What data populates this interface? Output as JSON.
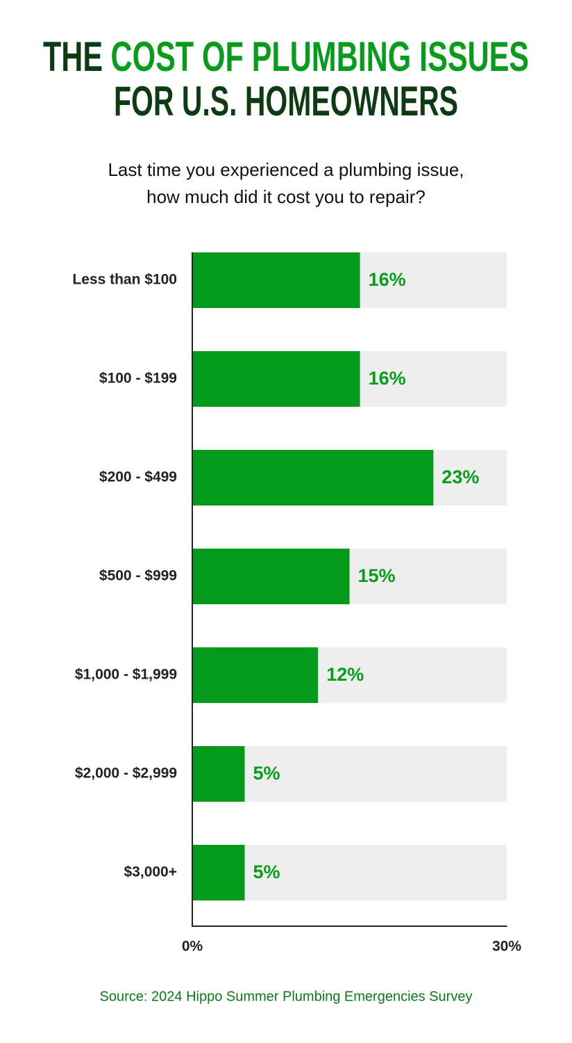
{
  "chart_data": {
    "type": "bar",
    "orientation": "horizontal",
    "title": {
      "lead": "THE",
      "highlight": "COST OF PLUMBING ISSUES",
      "rest": "FOR U.S. HOMEOWNERS"
    },
    "subtitle": [
      "Last time you experienced a plumbing issue,",
      "how much did it cost you to repair?"
    ],
    "categories": [
      "Less than $100",
      "$100 - $199",
      "$200 - $499",
      "$500 - $999",
      "$1,000 - $1,999",
      "$2,000 - $2,999",
      "$3,000+"
    ],
    "values": [
      16,
      16,
      23,
      15,
      12,
      5,
      5
    ],
    "value_labels": [
      "16%",
      "16%",
      "23%",
      "15%",
      "12%",
      "5%",
      "5%"
    ],
    "color": "#049b1d",
    "track_color": "#eeeeee",
    "xlim": [
      0,
      30
    ],
    "xticks": [
      {
        "value": 0,
        "label": "0%"
      },
      {
        "value": 30,
        "label": "30%"
      }
    ],
    "source": "Source: 2024 Hippo Summer Plumbing Emergencies Survey"
  }
}
